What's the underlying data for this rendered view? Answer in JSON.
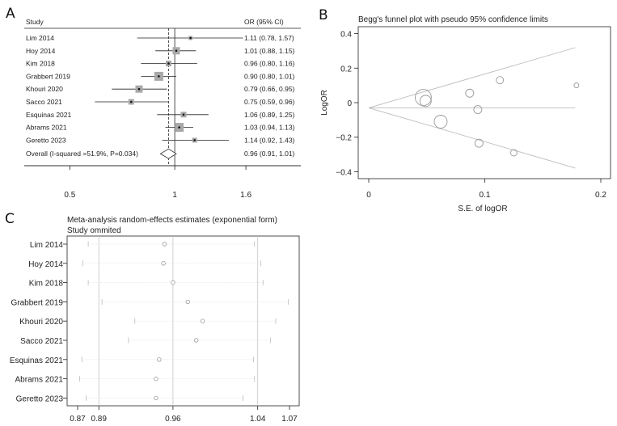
{
  "chart_data": [
    {
      "panel": "A",
      "type": "forest",
      "header": {
        "study": "Study",
        "effect": "OR (95% CI)"
      },
      "studies": [
        {
          "name": "Lim 2014",
          "or": 1.11,
          "lo": 0.78,
          "hi": 1.57,
          "label": "1.11 (0.78, 1.57)",
          "weight": 1
        },
        {
          "name": "Hoy 2014",
          "or": 1.01,
          "lo": 0.88,
          "hi": 1.15,
          "label": "1.01 (0.88, 1.15)",
          "weight": 3
        },
        {
          "name": "Kim 2018",
          "or": 0.96,
          "lo": 0.8,
          "hi": 1.16,
          "label": "0.96 (0.80, 1.16)",
          "weight": 2
        },
        {
          "name": "Grabbert 2019",
          "or": 0.9,
          "lo": 0.8,
          "hi": 1.01,
          "label": "0.90 (0.80, 1.01)",
          "weight": 4
        },
        {
          "name": "Khouri 2020",
          "or": 0.79,
          "lo": 0.66,
          "hi": 0.95,
          "label": "0.79 (0.66, 0.95)",
          "weight": 3
        },
        {
          "name": "Sacco 2021",
          "or": 0.75,
          "lo": 0.59,
          "hi": 0.96,
          "label": "0.75 (0.59, 0.96)",
          "weight": 2
        },
        {
          "name": "Esquinas 2021",
          "or": 1.06,
          "lo": 0.89,
          "hi": 1.25,
          "label": "1.06 (0.89, 1.25)",
          "weight": 2
        },
        {
          "name": "Abrams 2021",
          "or": 1.03,
          "lo": 0.94,
          "hi": 1.13,
          "label": "1.03 (0.94, 1.13)",
          "weight": 4
        },
        {
          "name": "Geretto 2023",
          "or": 1.14,
          "lo": 0.92,
          "hi": 1.43,
          "label": "1.14 (0.92, 1.43)",
          "weight": 1.5
        }
      ],
      "overall": {
        "name": "Overall (I-squared =51.9%, P=0.034)",
        "or": 0.96,
        "lo": 0.91,
        "hi": 1.01,
        "label": "0.96 (0.91, 1.01)"
      },
      "x_ticks": [
        {
          "value": 0.5,
          "label": "0.5"
        },
        {
          "value": 1,
          "label": "1"
        },
        {
          "value": 1.6,
          "label": "1.6"
        }
      ],
      "xlim": [
        0.37,
        2.3
      ],
      "scale": "log"
    },
    {
      "panel": "B",
      "type": "scatter",
      "title": "Begg's funnel plot with pseudo 95% confidence limits",
      "xlabel": "S.E. of logOR",
      "ylabel": "LogOR",
      "xlim": [
        0,
        0.2
      ],
      "ylim": [
        -0.44,
        0.44
      ],
      "x_ticks": [
        {
          "value": 0,
          "label": "0"
        },
        {
          "value": 0.1,
          "label": "0.1"
        },
        {
          "value": 0.2,
          "label": "0.2"
        }
      ],
      "y_ticks": [
        {
          "value": 0.4,
          "label": "0.4"
        },
        {
          "value": 0.2,
          "label": "0.2"
        },
        {
          "value": 0,
          "label": "0"
        },
        {
          "value": -0.2,
          "label": "−0.2"
        },
        {
          "value": -0.4,
          "label": "−0.4"
        }
      ],
      "pooled": -0.03,
      "points": [
        {
          "se": 0.047,
          "y": 0.03,
          "w": 10
        },
        {
          "se": 0.049,
          "y": 0.01,
          "w": 7
        },
        {
          "se": 0.062,
          "y": -0.11,
          "w": 8
        },
        {
          "se": 0.087,
          "y": 0.055,
          "w": 5
        },
        {
          "se": 0.094,
          "y": -0.04,
          "w": 5
        },
        {
          "se": 0.095,
          "y": -0.235,
          "w": 5
        },
        {
          "se": 0.113,
          "y": 0.13,
          "w": 4.5
        },
        {
          "se": 0.125,
          "y": -0.29,
          "w": 4
        },
        {
          "se": 0.179,
          "y": 0.1,
          "w": 3
        }
      ]
    },
    {
      "panel": "C",
      "type": "influence",
      "title": "Meta-analysis random-effects estimates (exponential form)",
      "subtitle": "Study ommited",
      "x_ticks": [
        {
          "value": 0.87,
          "label": "0.87"
        },
        {
          "value": 0.89,
          "label": "0.89"
        },
        {
          "value": 0.96,
          "label": "0.96"
        },
        {
          "value": 1.04,
          "label": "1.04"
        },
        {
          "value": 1.07,
          "label": "1.07"
        }
      ],
      "xlim": [
        0.87,
        1.07
      ],
      "rows": [
        {
          "name": "Lim 2014",
          "est": 0.952,
          "lo": 0.88,
          "hi": 1.037
        },
        {
          "name": "Hoy 2014",
          "est": 0.951,
          "lo": 0.875,
          "hi": 1.043
        },
        {
          "name": "Kim 2018",
          "est": 0.96,
          "lo": 0.88,
          "hi": 1.045
        },
        {
          "name": "Grabbert 2019",
          "est": 0.974,
          "lo": 0.893,
          "hi": 1.069
        },
        {
          "name": "Khouri 2020",
          "est": 0.988,
          "lo": 0.924,
          "hi": 1.057
        },
        {
          "name": "Sacco 2021",
          "est": 0.982,
          "lo": 0.918,
          "hi": 1.052
        },
        {
          "name": "Esquinas 2021",
          "est": 0.947,
          "lo": 0.874,
          "hi": 1.036
        },
        {
          "name": "Abrams 2021",
          "est": 0.944,
          "lo": 0.872,
          "hi": 1.037
        },
        {
          "name": "Geretto 2023",
          "est": 0.944,
          "lo": 0.878,
          "hi": 1.026
        }
      ]
    }
  ],
  "panels": {
    "a": "A",
    "b": "B",
    "c": "C"
  }
}
